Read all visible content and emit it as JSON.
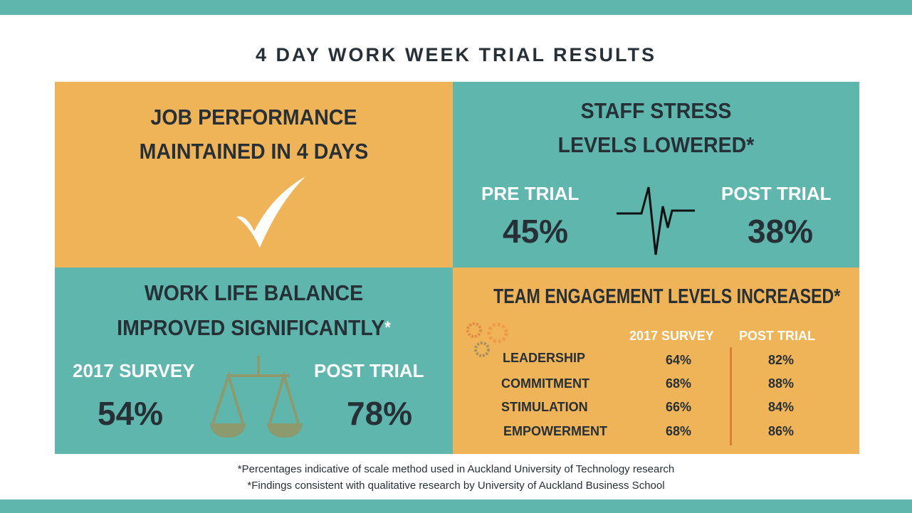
{
  "title": "4 DAY WORK WEEK TRIAL RESULTS",
  "colors": {
    "teal": "#5fb6ad",
    "orange": "#efb457",
    "dark": "#263036",
    "divider": "#e07a35"
  },
  "job_performance": {
    "line1": "JOB PERFORMANCE",
    "line2": "MAINTAINED IN 4 DAYS",
    "icon": "checkmark-icon"
  },
  "stress": {
    "line1": "STAFF STRESS",
    "line2": "LEVELS LOWERED*",
    "pre_label": "PRE TRIAL",
    "pre_value": "45%",
    "post_label": "POST TRIAL",
    "post_value": "38%",
    "icon": "heartbeat-icon"
  },
  "balance": {
    "line1": "WORK LIFE BALANCE",
    "line2": "IMPROVED SIGNIFICANTLY",
    "asterisk": "*",
    "survey_label": "2017 SURVEY",
    "survey_value": "54%",
    "post_label": "POST TRIAL",
    "post_value": "78%",
    "icon": "scales-icon"
  },
  "engagement": {
    "title": "TEAM ENGAGEMENT LEVELS INCREASED*",
    "col1": "2017 SURVEY",
    "col2": "POST TRIAL",
    "icon": "gears-icon",
    "rows": [
      {
        "label": "LEADERSHIP",
        "survey": "64%",
        "post": "82%"
      },
      {
        "label": "COMMITMENT",
        "survey": "68%",
        "post": "88%"
      },
      {
        "label": "STIMULATION",
        "survey": "66%",
        "post": "84%"
      },
      {
        "label": "EMPOWERMENT",
        "survey": "68%",
        "post": "86%"
      }
    ]
  },
  "footnotes": [
    "*Percentages indicative of scale method used in Auckland University of Technology research",
    "*Findings consistent with qualitative research by University of Auckland Business School"
  ]
}
